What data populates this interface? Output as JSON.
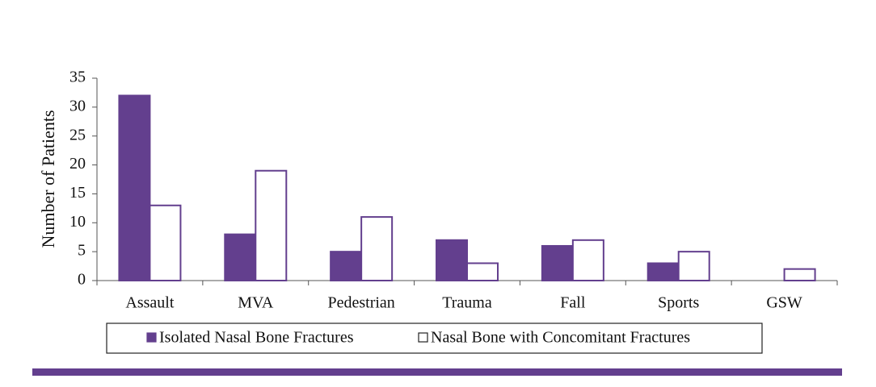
{
  "chart_data": {
    "type": "bar",
    "ylabel": "Number of Patients",
    "categories": [
      "Assault",
      "MVA",
      "Pedestrian",
      "Trauma",
      "Fall",
      "Sports",
      "GSW"
    ],
    "series": [
      {
        "name": "Isolated Nasal Bone Fractures",
        "color": "#633f8e",
        "fill": "#633f8e",
        "values": [
          32,
          8,
          5,
          7,
          6,
          3,
          0
        ]
      },
      {
        "name": "Nasal Bone with Concomitant Fractures",
        "color": "#633f8e",
        "fill": "#ffffff",
        "values": [
          13,
          19,
          11,
          3,
          7,
          5,
          2
        ]
      }
    ],
    "ylim": [
      0,
      35
    ],
    "yticks": [
      0,
      5,
      10,
      15,
      20,
      25,
      30,
      35
    ],
    "grid": false,
    "legend": "bottom"
  }
}
